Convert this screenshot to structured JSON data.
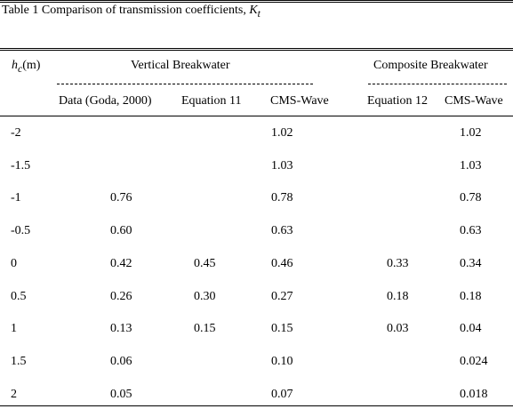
{
  "caption": {
    "prefix": "Table 1 Comparison of transmission coefficients, ",
    "symbol": "K",
    "symbol_sub": "t"
  },
  "header": {
    "col0_symbol": "h",
    "col0_sub": "c",
    "col0_unit": "(m)",
    "group_vertical": "Vertical Breakwater",
    "group_composite": "Composite Breakwater",
    "sub_data": "Data (Goda, 2000)",
    "sub_eq11": "Equation 11",
    "sub_cms_v": "CMS-Wave",
    "sub_eq12": "Equation 12",
    "sub_cms_c": "CMS-Wave"
  },
  "rows": [
    {
      "hc": "-2",
      "data": "",
      "eq11": "",
      "cmsv": "1.02",
      "eq12": "",
      "cmsc": "1.02"
    },
    {
      "hc": "-1.5",
      "data": "",
      "eq11": "",
      "cmsv": "1.03",
      "eq12": "",
      "cmsc": "1.03"
    },
    {
      "hc": "-1",
      "data": "0.76",
      "eq11": "",
      "cmsv": "0.78",
      "eq12": "",
      "cmsc": "0.78"
    },
    {
      "hc": "-0.5",
      "data": "0.60",
      "eq11": "",
      "cmsv": "0.63",
      "eq12": "",
      "cmsc": "0.63"
    },
    {
      "hc": "0",
      "data": "0.42",
      "eq11": "0.45",
      "cmsv": "0.46",
      "eq12": "0.33",
      "cmsc": "0.34"
    },
    {
      "hc": "0.5",
      "data": "0.26",
      "eq11": "0.30",
      "cmsv": "0.27",
      "eq12": "0.18",
      "cmsc": "0.18"
    },
    {
      "hc": "1",
      "data": "0.13",
      "eq11": "0.15",
      "cmsv": "0.15",
      "eq12": "0.03",
      "cmsc": "0.04"
    },
    {
      "hc": "1.5",
      "data": "0.06",
      "eq11": "",
      "cmsv": "0.10",
      "eq12": "",
      "cmsc": "0.024"
    },
    {
      "hc": "2",
      "data": "0.05",
      "eq11": "",
      "cmsv": "0.07",
      "eq12": "",
      "cmsc": "0.018"
    }
  ]
}
